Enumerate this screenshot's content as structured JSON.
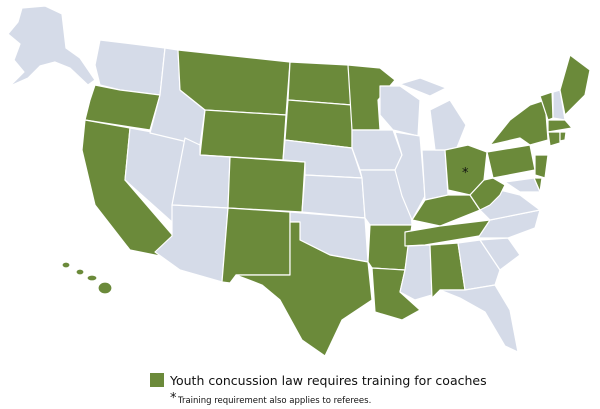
{
  "legend": {
    "label": "Youth concussion law requires training for coaches",
    "color": "#6b8a3a"
  },
  "footnote": {
    "marker": "*",
    "text": "Training requirement also applies to referees."
  },
  "base_color": "#d5dbe8"
}
